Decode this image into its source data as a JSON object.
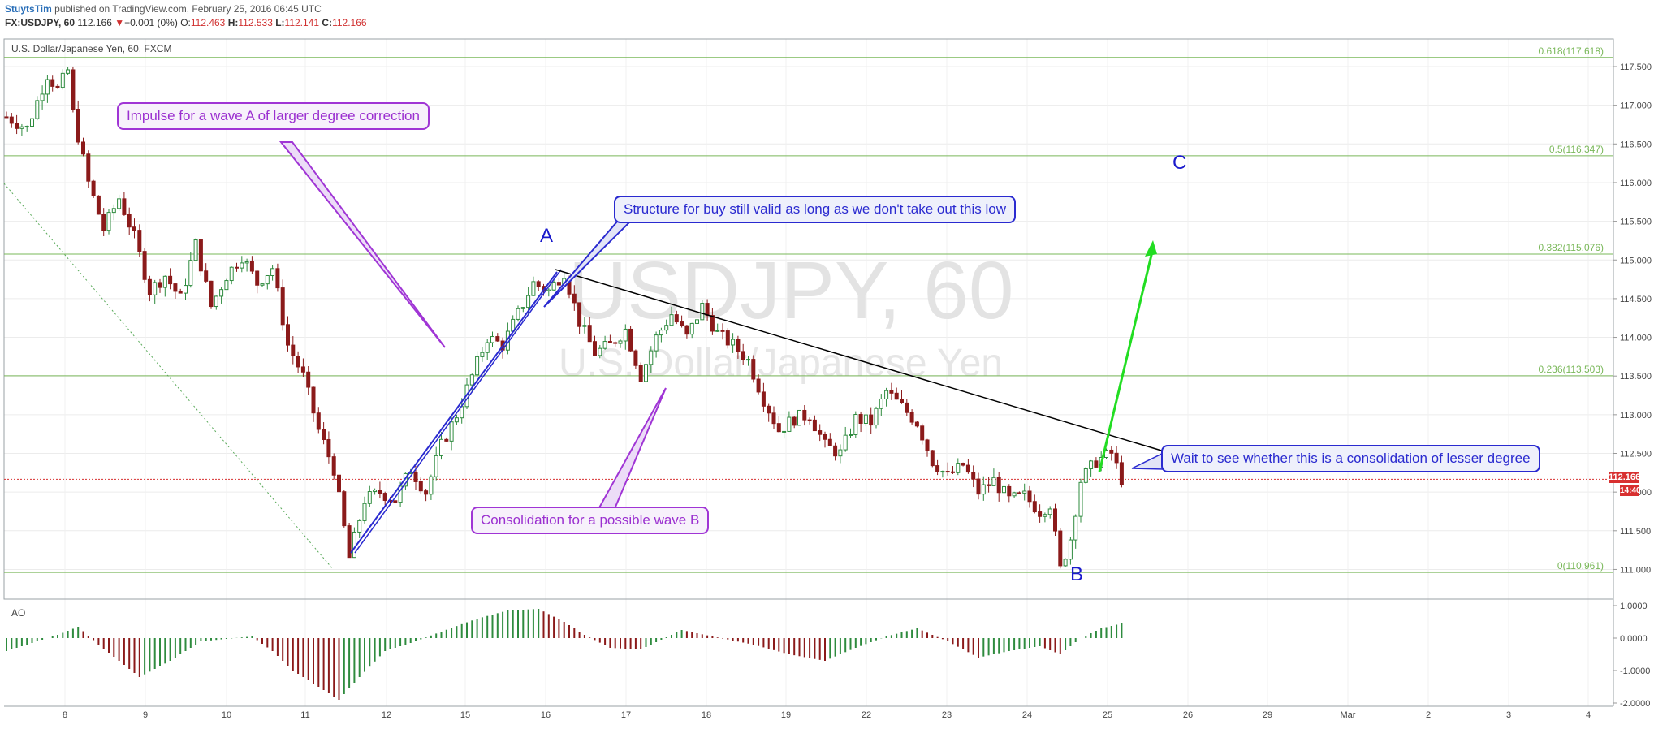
{
  "header": {
    "author": "StuytsTim",
    "published": "published on TradingView.com, February 25, 2016 06:45 UTC",
    "symbol": "FX:USDJPY, 60",
    "last": "112.166",
    "change_arrow": "▼",
    "change": "−0.001 (0%)",
    "open_label": "O:",
    "open": "112.463",
    "high_label": "H:",
    "high": "112.533",
    "low_label": "L:",
    "low": "112.141",
    "close_label": "C:",
    "close": "112.166"
  },
  "pane_title": "U.S. Dollar/Japanese Yen, 60, FXCM",
  "watermark": {
    "symbol": "USDJPY, 60",
    "name": "U.S. Dollar/Japanese Yen"
  },
  "annotations": {
    "impulse": "Impulse for a wave A of larger degree correction",
    "structure": "Structure for buy still valid as long as we don't take out this low",
    "consolidation": "Consolidation for a possible wave B",
    "wait": "Wait to see whether this is a consolidation of lesser degree",
    "wave_a": "A",
    "wave_b": "B",
    "wave_c": "C"
  },
  "price_tag": "112.166",
  "time_tag": "14:40",
  "colors": {
    "up": "#2e8b3e",
    "down": "#8b1a1a",
    "fib": "#7ab85a",
    "trend": "#000000",
    "channel": "#2a2ad0",
    "arrow": "#22dd22",
    "price_line": "#d83030"
  },
  "chart_data": {
    "type": "candlestick",
    "x_labels": [
      "8",
      "9",
      "10",
      "11",
      "12",
      "15",
      "16",
      "17",
      "18",
      "19",
      "22",
      "23",
      "24",
      "25",
      "26",
      "29",
      "Mar",
      "2",
      "3",
      "4"
    ],
    "y_ticks": [
      "117.500",
      "117.000",
      "116.500",
      "116.000",
      "115.500",
      "115.000",
      "114.500",
      "114.000",
      "113.500",
      "113.000",
      "112.500",
      "112.000",
      "111.500",
      "111.000"
    ],
    "ylim": [
      110.7,
      117.8
    ],
    "fib_levels": [
      {
        "label": "0.618(117.618)",
        "value": 117.618
      },
      {
        "label": "0.5(116.347)",
        "value": 116.347
      },
      {
        "label": "0.382(115.076)",
        "value": 115.076
      },
      {
        "label": "0.236(113.503)",
        "value": 113.503
      },
      {
        "label": "0(110.961)",
        "value": 110.961
      }
    ],
    "last_price": 112.166,
    "price_path": [
      [
        0,
        116.85
      ],
      [
        4,
        116.7
      ],
      [
        8,
        117.4
      ],
      [
        10,
        117.2
      ],
      [
        12,
        117.45
      ],
      [
        13,
        116.9
      ],
      [
        16,
        116.0
      ],
      [
        19,
        115.4
      ],
      [
        22,
        115.8
      ],
      [
        25,
        115.3
      ],
      [
        28,
        114.6
      ],
      [
        31,
        114.8
      ],
      [
        34,
        114.5
      ],
      [
        37,
        115.2
      ],
      [
        40,
        114.4
      ],
      [
        43,
        114.8
      ],
      [
        46,
        115.05
      ],
      [
        49,
        114.7
      ],
      [
        52,
        114.9
      ],
      [
        55,
        113.9
      ],
      [
        58,
        113.5
      ],
      [
        61,
        112.8
      ],
      [
        64,
        112.3
      ],
      [
        67,
        111.15
      ],
      [
        70,
        111.9
      ],
      [
        73,
        112.0
      ],
      [
        76,
        111.9
      ],
      [
        79,
        112.3
      ],
      [
        82,
        112.0
      ],
      [
        85,
        112.6
      ],
      [
        88,
        113.0
      ],
      [
        91,
        113.5
      ],
      [
        94,
        114.0
      ],
      [
        97,
        113.9
      ],
      [
        100,
        114.3
      ],
      [
        103,
        114.7
      ],
      [
        106,
        114.6
      ],
      [
        109,
        114.85
      ],
      [
        112,
        114.2
      ],
      [
        115,
        113.8
      ],
      [
        118,
        113.9
      ],
      [
        121,
        114.1
      ],
      [
        124,
        113.5
      ],
      [
        127,
        114.0
      ],
      [
        130,
        114.3
      ],
      [
        133,
        114.0
      ],
      [
        136,
        114.4
      ],
      [
        139,
        114.05
      ],
      [
        142,
        113.9
      ],
      [
        145,
        113.7
      ],
      [
        148,
        113.2
      ],
      [
        151,
        112.8
      ],
      [
        154,
        112.95
      ],
      [
        157,
        113.0
      ],
      [
        160,
        112.6
      ],
      [
        163,
        112.5
      ],
      [
        166,
        112.95
      ],
      [
        169,
        112.9
      ],
      [
        172,
        113.3
      ],
      [
        175,
        113.1
      ],
      [
        178,
        112.9
      ],
      [
        181,
        112.4
      ],
      [
        184,
        112.2
      ],
      [
        187,
        112.35
      ],
      [
        190,
        112.0
      ],
      [
        193,
        112.15
      ],
      [
        196,
        111.9
      ],
      [
        199,
        111.95
      ],
      [
        202,
        111.75
      ],
      [
        204,
        111.85
      ],
      [
        206,
        111.0
      ],
      [
        208,
        111.4
      ],
      [
        210,
        112.15
      ],
      [
        213,
        112.4
      ],
      [
        216,
        112.5
      ],
      [
        218,
        112.166
      ]
    ],
    "ao": {
      "title": "AO",
      "y_ticks": [
        "1.0000",
        "0.0000",
        "-1.0000",
        "-2.0000"
      ],
      "ylim": [
        -2.05,
        1.1
      ],
      "path": [
        [
          0,
          -0.4
        ],
        [
          10,
          0.1
        ],
        [
          14,
          0.35
        ],
        [
          18,
          -0.2
        ],
        [
          26,
          -1.2
        ],
        [
          32,
          -0.7
        ],
        [
          38,
          -0.1
        ],
        [
          48,
          0.05
        ],
        [
          52,
          -0.4
        ],
        [
          56,
          -1.0
        ],
        [
          61,
          -1.5
        ],
        [
          65,
          -1.9
        ],
        [
          69,
          -1.2
        ],
        [
          74,
          -0.4
        ],
        [
          80,
          -0.1
        ],
        [
          85,
          0.2
        ],
        [
          92,
          0.6
        ],
        [
          98,
          0.85
        ],
        [
          104,
          0.9
        ],
        [
          109,
          0.5
        ],
        [
          113,
          0.1
        ],
        [
          118,
          -0.3
        ],
        [
          124,
          -0.35
        ],
        [
          132,
          0.25
        ],
        [
          138,
          0.05
        ],
        [
          146,
          -0.2
        ],
        [
          153,
          -0.5
        ],
        [
          160,
          -0.7
        ],
        [
          166,
          -0.3
        ],
        [
          172,
          0.05
        ],
        [
          178,
          0.3
        ],
        [
          184,
          -0.1
        ],
        [
          190,
          -0.6
        ],
        [
          196,
          -0.4
        ],
        [
          202,
          -0.25
        ],
        [
          206,
          -0.5
        ],
        [
          210,
          0.0
        ],
        [
          214,
          0.3
        ],
        [
          218,
          0.45
        ]
      ]
    }
  }
}
